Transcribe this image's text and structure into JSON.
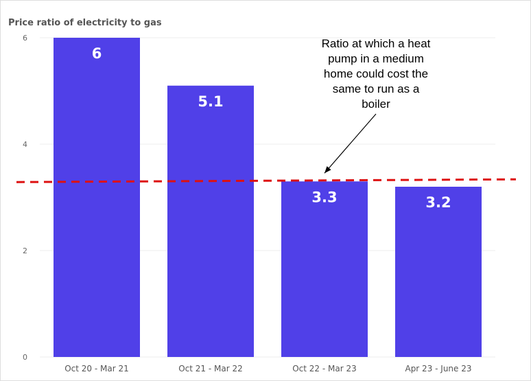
{
  "chart_data": {
    "type": "bar",
    "ylabel": "Price ratio of electricity to gas",
    "categories": [
      "Oct 20 - Mar 21",
      "Oct 21 - Mar 22",
      "Oct 22 - Mar 23",
      "Apr 23 - June 23"
    ],
    "values": [
      6,
      5.1,
      3.3,
      3.2
    ],
    "data_labels": [
      "6",
      "5.1",
      "3.3",
      "3.2"
    ],
    "ylim": [
      0,
      6
    ],
    "yticks": [
      0,
      2,
      4,
      6
    ],
    "grid": true,
    "bar_color": "#5040e8",
    "reference_line": {
      "value": 3.3,
      "color": "#dd1111",
      "style": "dashed"
    },
    "annotation": {
      "lines": [
        "Ratio at which a heat",
        "pump in a medium",
        "home could cost the",
        "same to run as a",
        "boiler"
      ],
      "points_to": 3.3
    }
  }
}
